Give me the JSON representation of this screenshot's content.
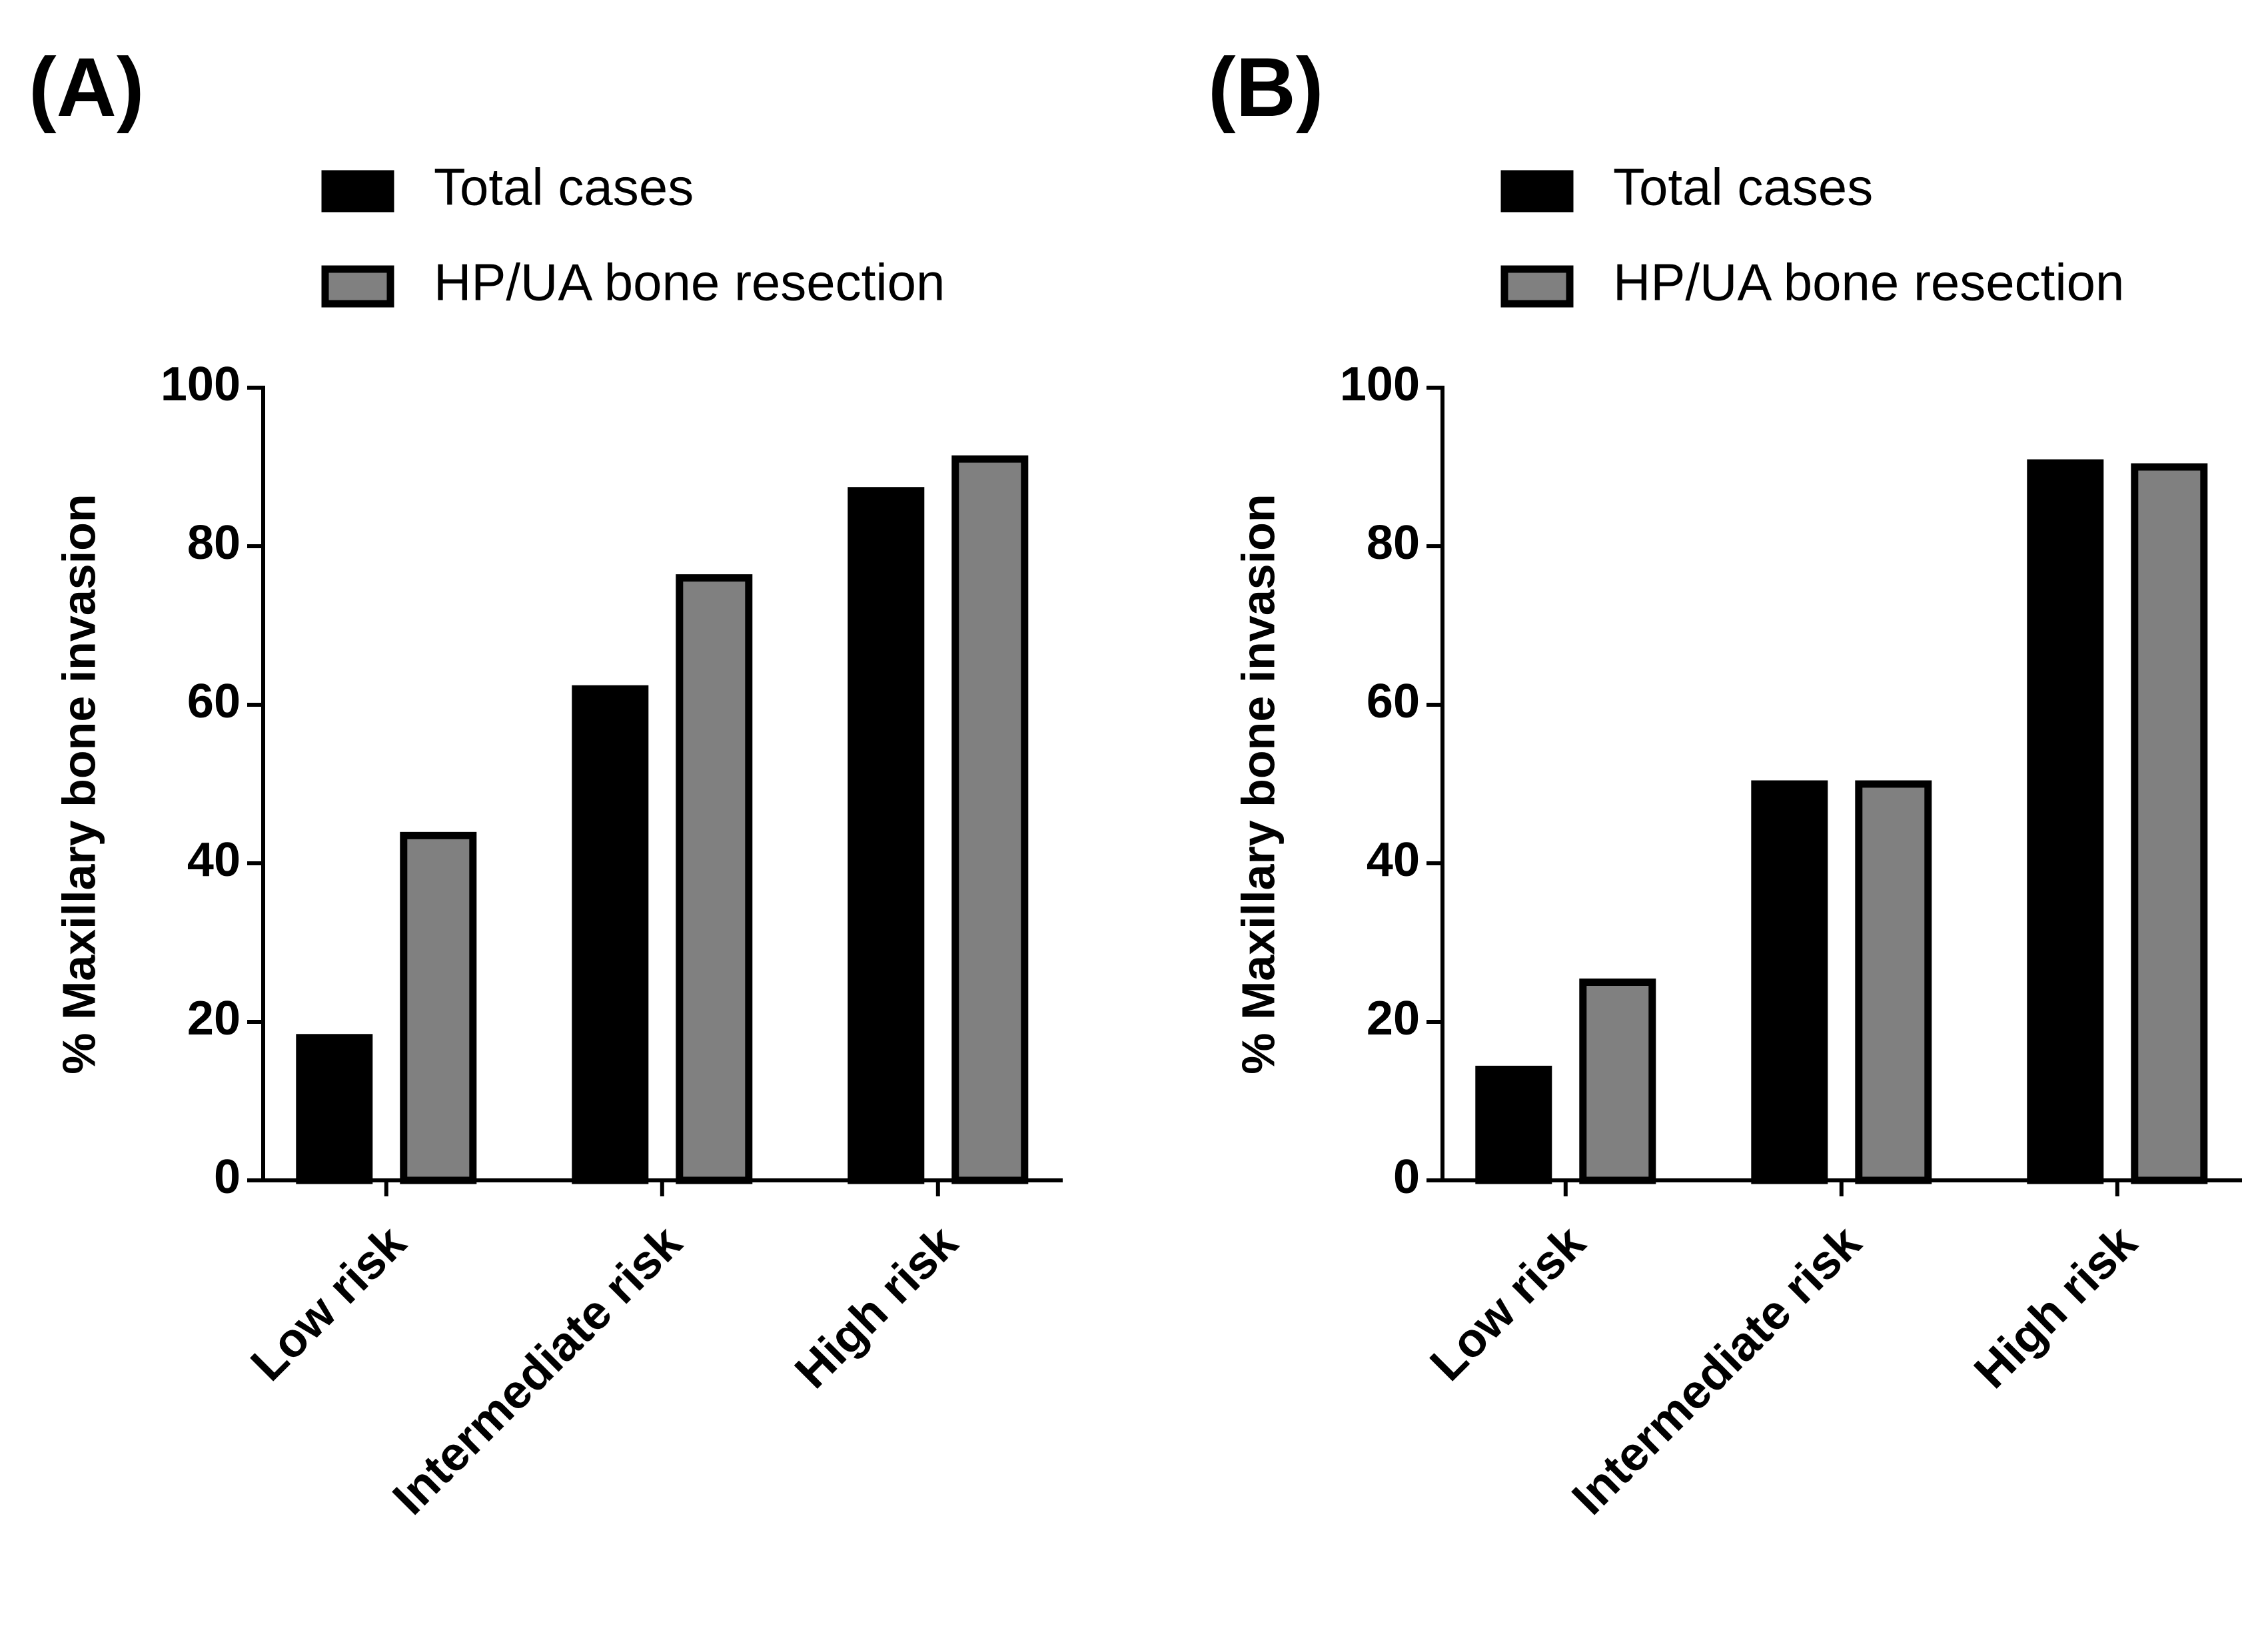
{
  "chart_data": [
    {
      "type": "bar",
      "label": "(A)",
      "ylabel": "% Maxillary bone invasion",
      "categories": [
        "Low risk",
        "Intermediate risk",
        "High risk"
      ],
      "series": [
        {
          "name": "Total cases",
          "color": "#000000",
          "values": [
            18,
            62,
            87
          ]
        },
        {
          "name": "HP/UA bone resection",
          "color": "#808080",
          "values": [
            43.5,
            76,
            91
          ]
        }
      ],
      "ylim": [
        0,
        100
      ],
      "yticks": [
        0,
        20,
        40,
        60,
        80,
        100
      ]
    },
    {
      "type": "bar",
      "label": "(B)",
      "ylabel": "% Maxillary bone invasion",
      "categories": [
        "Low risk",
        "Intermediate risk",
        "High risk"
      ],
      "series": [
        {
          "name": "Total cases",
          "color": "#000000",
          "values": [
            14,
            50,
            90.5
          ]
        },
        {
          "name": "HP/UA bone resection",
          "color": "#808080",
          "values": [
            25,
            50,
            90
          ]
        }
      ],
      "ylim": [
        0,
        100
      ],
      "yticks": [
        0,
        20,
        40,
        60,
        80,
        100
      ]
    }
  ]
}
